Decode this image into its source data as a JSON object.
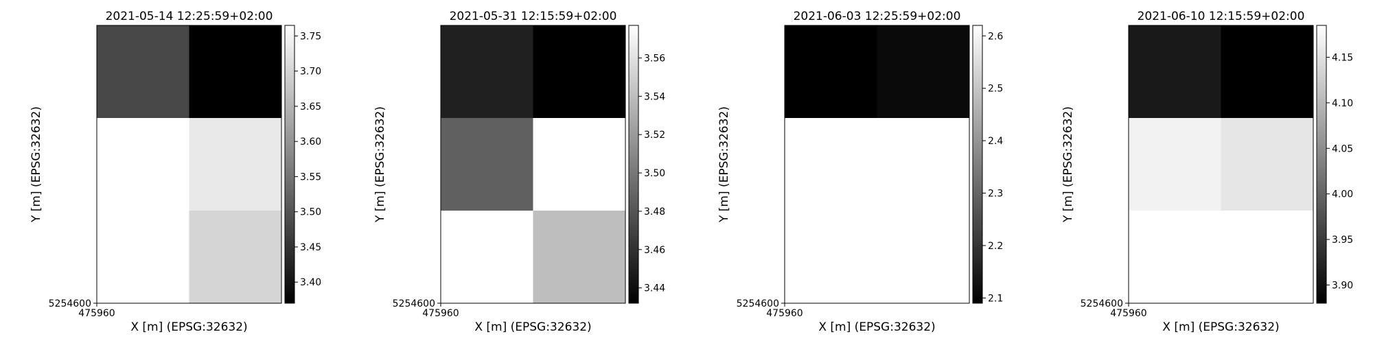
{
  "chart_data": [
    {
      "type": "heatmap",
      "title": "2021-05-14 12:25:59+02:00",
      "xlabel": "X [m] (EPSG:32632)",
      "ylabel": "Y [m] (EPSG:32632)",
      "x_tick_labels": [
        "475960"
      ],
      "y_tick_labels": [
        "5254600"
      ],
      "colormap": "gray",
      "vmin": 3.37,
      "vmax": 3.765,
      "colorbar_ticks": [
        3.4,
        3.45,
        3.5,
        3.55,
        3.6,
        3.65,
        3.7,
        3.75
      ],
      "colorbar_tick_labels": [
        "3.40",
        "3.45",
        "3.50",
        "3.55",
        "3.60",
        "3.65",
        "3.70",
        "3.75"
      ],
      "grid": [
        [
          3.48,
          3.37
        ],
        [
          3.765,
          3.73
        ],
        [
          3.765,
          3.7
        ]
      ]
    },
    {
      "type": "heatmap",
      "title": "2021-05-31 12:15:59+02:00",
      "xlabel": "X [m] (EPSG:32632)",
      "ylabel": "Y [m] (EPSG:32632)",
      "x_tick_labels": [
        "475960"
      ],
      "y_tick_labels": [
        "5254600"
      ],
      "colormap": "gray",
      "vmin": 3.432,
      "vmax": 3.577,
      "colorbar_ticks": [
        3.44,
        3.46,
        3.48,
        3.5,
        3.52,
        3.54,
        3.56
      ],
      "colorbar_tick_labels": [
        "3.44",
        "3.46",
        "3.48",
        "3.50",
        "3.52",
        "3.54",
        "3.56"
      ],
      "grid": [
        [
          3.45,
          3.432
        ],
        [
          3.487,
          3.577
        ],
        [
          3.577,
          3.54
        ]
      ]
    },
    {
      "type": "heatmap",
      "title": "2021-06-03 12:25:59+02:00",
      "xlabel": "X [m] (EPSG:32632)",
      "ylabel": "Y [m] (EPSG:32632)",
      "x_tick_labels": [
        "475960"
      ],
      "y_tick_labels": [
        "5254600"
      ],
      "colormap": "gray",
      "vmin": 2.09,
      "vmax": 2.62,
      "colorbar_ticks": [
        2.1,
        2.2,
        2.3,
        2.4,
        2.5,
        2.6
      ],
      "colorbar_tick_labels": [
        "2.1",
        "2.2",
        "2.3",
        "2.4",
        "2.5",
        "2.6"
      ],
      "grid": [
        [
          2.09,
          2.11
        ],
        [
          2.62,
          2.62
        ],
        [
          2.62,
          2.62
        ]
      ]
    },
    {
      "type": "heatmap",
      "title": "2021-06-10 12:15:59+02:00",
      "xlabel": "X [m] (EPSG:32632)",
      "ylabel": "Y [m] (EPSG:32632)",
      "x_tick_labels": [
        "475960"
      ],
      "y_tick_labels": [
        "5254600"
      ],
      "colormap": "gray",
      "vmin": 3.88,
      "vmax": 4.185,
      "colorbar_ticks": [
        3.9,
        3.95,
        4.0,
        4.05,
        4.1,
        4.15
      ],
      "colorbar_tick_labels": [
        "3.90",
        "3.95",
        "4.00",
        "4.05",
        "4.10",
        "4.15"
      ],
      "grid": [
        [
          3.91,
          3.88
        ],
        [
          4.17,
          4.155
        ],
        [
          4.185,
          4.185
        ]
      ]
    }
  ]
}
